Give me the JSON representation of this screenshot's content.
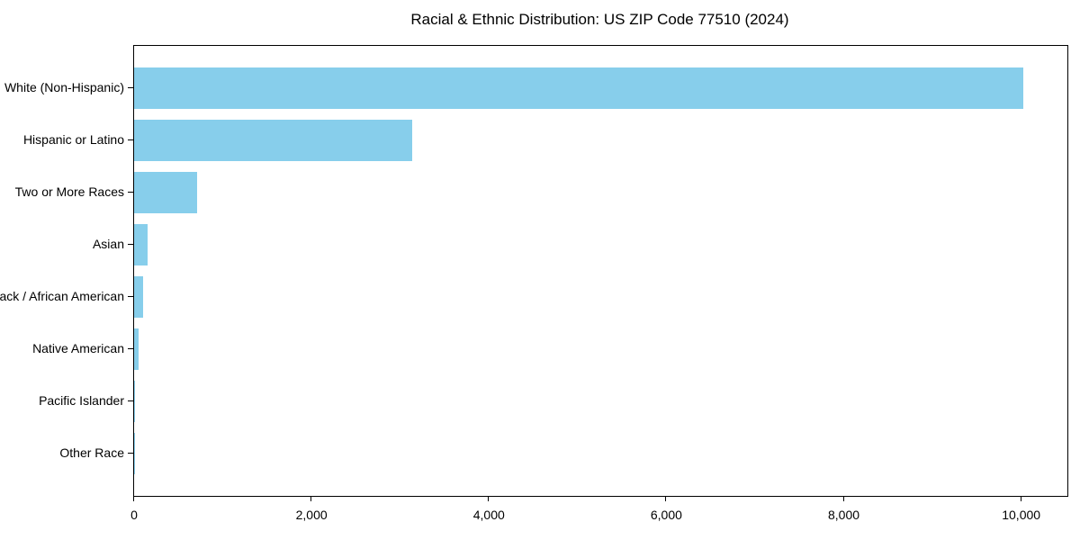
{
  "chart_data": {
    "type": "bar",
    "orientation": "horizontal",
    "title": "Racial & Ethnic Distribution: US ZIP Code 77510 (2024)",
    "categories": [
      "White (Non-Hispanic)",
      "Hispanic or Latino",
      "Two or More Races",
      "Asian",
      "Black / African American",
      "Native American",
      "Pacific Islander",
      "Other Race"
    ],
    "values": [
      10020,
      3130,
      710,
      155,
      105,
      50,
      8,
      4
    ],
    "xlabel": "",
    "ylabel": "",
    "xlim": [
      0,
      10521
    ],
    "xticks": [
      0,
      2000,
      4000,
      6000,
      8000,
      10000
    ],
    "xtick_labels": [
      "0",
      "2,000",
      "4,000",
      "6,000",
      "8,000",
      "10,000"
    ],
    "grid": false,
    "legend": null,
    "bar_color": "#87CEEB"
  },
  "colors": {
    "background": "#ffffff",
    "axis": "#000000",
    "text": "#000000",
    "bar": "#87CEEB"
  }
}
